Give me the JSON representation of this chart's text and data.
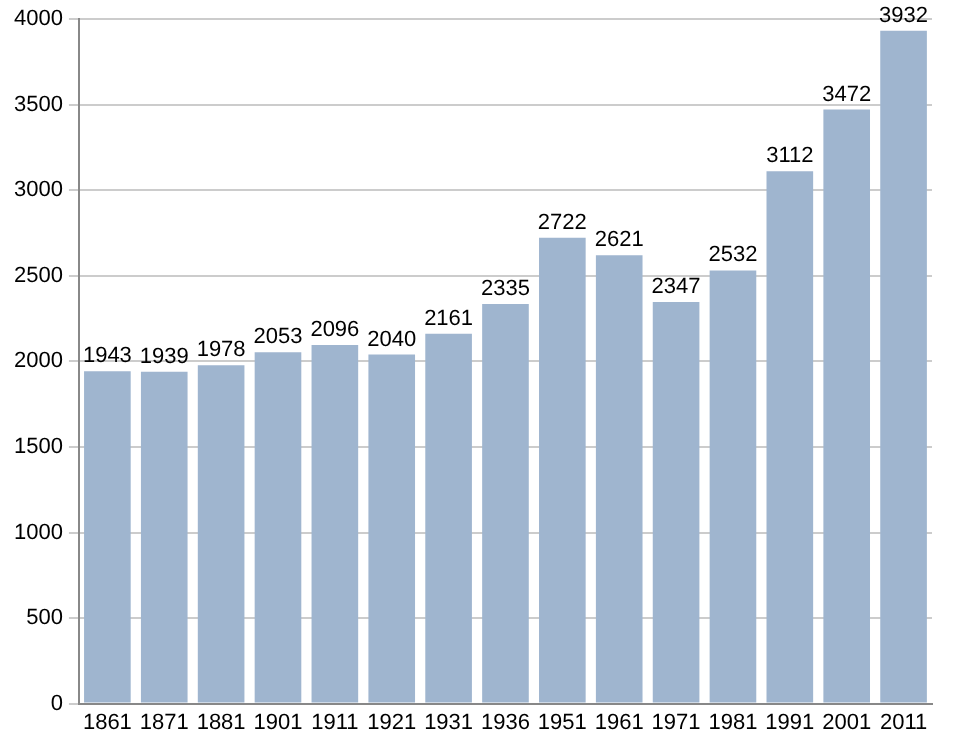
{
  "chart_data": {
    "type": "bar",
    "categories": [
      "1861",
      "1871",
      "1881",
      "1901",
      "1911",
      "1921",
      "1931",
      "1936",
      "1951",
      "1961",
      "1971",
      "1981",
      "1991",
      "2001",
      "2011"
    ],
    "values": [
      1943,
      1939,
      1978,
      2053,
      2096,
      2040,
      2161,
      2335,
      2722,
      2621,
      2347,
      2532,
      3112,
      3472,
      3932
    ],
    "color": "#9fb5cf",
    "ylim": [
      0,
      4000
    ],
    "yticks": [
      0,
      500,
      1000,
      1500,
      2000,
      2500,
      3000,
      3500,
      4000
    ],
    "grid": "y",
    "data_labels": true
  }
}
